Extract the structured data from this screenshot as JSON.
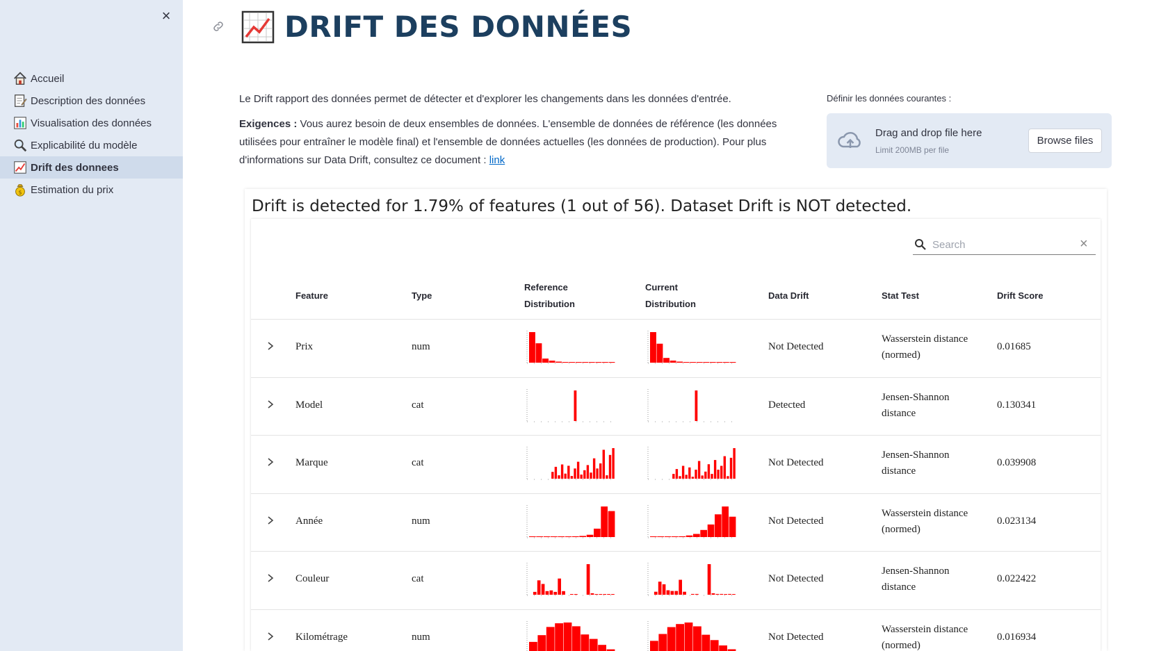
{
  "sidebar": {
    "close_icon": "close-icon",
    "items": [
      {
        "label": "Accueil",
        "icon": "house-icon",
        "active": false
      },
      {
        "label": "Description des données",
        "icon": "memo-icon",
        "active": false
      },
      {
        "label": "Visualisation des données",
        "icon": "bar-chart-icon",
        "active": false
      },
      {
        "label": "Explicabilité du modèle",
        "icon": "magnifier-icon",
        "active": false
      },
      {
        "label": "Drift des donnees",
        "icon": "trend-chart-icon",
        "active": true
      },
      {
        "label": "Estimation du prix",
        "icon": "money-bag-icon",
        "active": false
      }
    ]
  },
  "page": {
    "title": "DRIFT DES DONNÉES",
    "intro": "Le Drift rapport des données permet de détecter et d'explorer les changements dans les données d'entrée.",
    "requirements_label": "Exigences :",
    "requirements_text": " Vous aurez besoin de deux ensembles de données. L'ensemble de données de référence (les données utilisées pour entraîner le modèle final) et l'ensemble de données actuelles (les données de production). Pour plus d'informations sur Data Drift, consultez ce document : ",
    "link_text": "link"
  },
  "uploader": {
    "label": "Définir les données courantes :",
    "drop_text": "Drag and drop file here",
    "limit_text": "Limit 200MB per file",
    "browse_label": "Browse files"
  },
  "report": {
    "summary": "Drift is detected for 1.79% of features (1 out of 56). Dataset Drift is NOT detected.",
    "search_placeholder": "Search",
    "headers": {
      "feature": "Feature",
      "type": "Type",
      "ref_line1": "Reference",
      "ref_line2": "Distribution",
      "cur_line1": "Current",
      "cur_line2": "Distribution",
      "drift": "Data Drift",
      "test": "Stat Test",
      "score": "Drift Score"
    },
    "rows": [
      {
        "feature": "Prix",
        "type": "num",
        "drift": "Not Detected",
        "test": "Wasserstein distance (normed)",
        "score": "0.01685",
        "ref": [
          60,
          38,
          8,
          4,
          2,
          1,
          1,
          0.5,
          0.5,
          0.3,
          0.2,
          0.2,
          0.1
        ],
        "cur": [
          58,
          36,
          9,
          4,
          2,
          1,
          1,
          0.5,
          0.5,
          0.3,
          0.2,
          0.2,
          0.1
        ]
      },
      {
        "feature": "Model",
        "type": "cat",
        "drift": "Detected",
        "test": "Jensen-Shannon distance",
        "score": "0.130341",
        "ref": [
          0,
          0,
          0,
          0,
          0,
          0,
          0,
          0,
          0,
          0,
          0,
          0,
          0,
          6,
          0,
          0,
          0,
          0,
          0,
          0,
          0,
          0,
          0,
          0,
          0
        ],
        "cur": [
          0,
          0,
          0,
          0,
          0,
          0,
          0,
          0,
          0,
          0,
          0,
          0,
          0,
          6,
          0,
          0,
          0,
          0,
          0,
          0,
          0,
          0,
          0,
          0,
          0
        ]
      },
      {
        "feature": "Marque",
        "type": "cat",
        "drift": "Not Detected",
        "test": "Jensen-Shannon distance",
        "score": "0.039908",
        "ref": [
          0,
          0,
          0,
          0,
          0,
          0,
          0,
          20,
          35,
          10,
          42,
          15,
          38,
          8,
          30,
          50,
          12,
          25,
          40,
          18,
          60,
          30,
          45,
          85,
          10,
          70,
          90
        ],
        "cur": [
          0,
          0,
          0,
          0,
          0,
          0,
          0,
          15,
          30,
          8,
          40,
          12,
          35,
          6,
          28,
          55,
          10,
          22,
          45,
          15,
          58,
          28,
          40,
          70,
          8,
          65,
          95
        ]
      },
      {
        "feature": "Année",
        "type": "num",
        "drift": "Not Detected",
        "test": "Wasserstein distance (normed)",
        "score": "0.023134",
        "ref": [
          0.2,
          0.2,
          0.2,
          0.3,
          0.5,
          1,
          2,
          3,
          6,
          22,
          80,
          68
        ],
        "cur": [
          0.2,
          0.3,
          0.5,
          1,
          2,
          4,
          8,
          18,
          32,
          58,
          78,
          52
        ]
      },
      {
        "feature": "Couleur",
        "type": "cat",
        "drift": "Not Detected",
        "test": "Jensen-Shannon distance",
        "score": "0.022422",
        "ref": [
          0,
          8,
          40,
          30,
          10,
          12,
          8,
          45,
          10,
          0,
          2,
          2,
          0,
          0,
          85,
          4,
          2,
          2,
          1,
          2,
          1
        ],
        "cur": [
          0,
          8,
          35,
          28,
          12,
          10,
          10,
          40,
          8,
          0,
          2,
          2,
          0,
          0,
          82,
          4,
          2,
          2,
          1,
          2,
          1
        ]
      },
      {
        "feature": "Kilométrage",
        "type": "num",
        "drift": "Not Detected",
        "test": "Wasserstein distance (normed)",
        "score": "0.016934",
        "ref": [
          30,
          48,
          70,
          80,
          82,
          72,
          50,
          38,
          22,
          10
        ],
        "cur": [
          32,
          50,
          68,
          76,
          80,
          70,
          48,
          34,
          20,
          10
        ]
      }
    ]
  },
  "colors": {
    "bar": "#ff0000",
    "baseline": "#9a9a9a",
    "title": "#1c3f5f",
    "link": "#0068c9"
  }
}
